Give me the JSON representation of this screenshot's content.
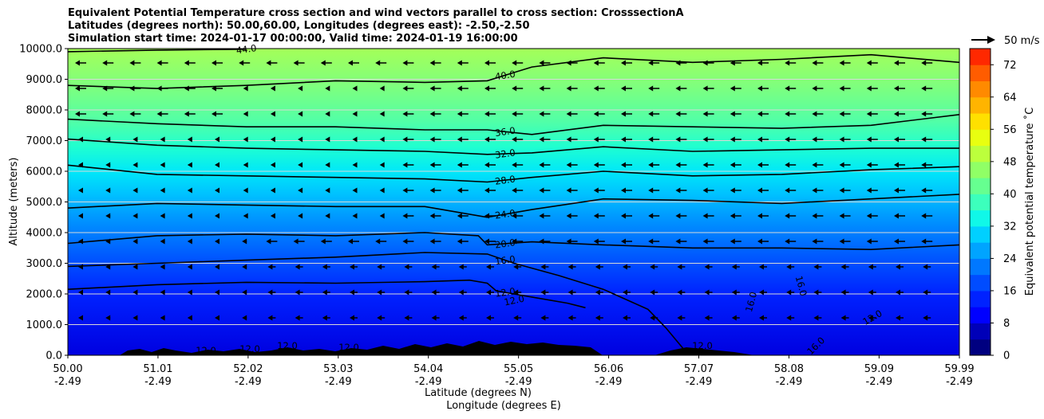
{
  "chart_data": {
    "type": "heatmap",
    "title_lines": [
      "Equivalent Potential Temperature cross section and wind vectors parallel to cross section: CrosssectionA",
      "Latitudes (degrees north): 50.00,60.00, Longitudes (degrees east): -2.50,-2.50",
      "Simulation start time: 2024-01-17 00:00:00, Valid time: 2024-01-19 16:00:00"
    ],
    "ylabel": "Altitude (meters)",
    "xlabel": "Latitude (degrees N)",
    "xlabel2": "Longitude (degrees E)",
    "ylim": [
      0,
      10000
    ],
    "xlim": [
      50.0,
      59.99
    ],
    "y_ticks": [
      {
        "value": 0,
        "label": "0.0"
      },
      {
        "value": 1000,
        "label": "1000.0"
      },
      {
        "value": 2000,
        "label": "2000.0"
      },
      {
        "value": 3000,
        "label": "3000.0"
      },
      {
        "value": 4000,
        "label": "4000.0"
      },
      {
        "value": 5000,
        "label": "5000.0"
      },
      {
        "value": 6000,
        "label": "6000.0"
      },
      {
        "value": 7000,
        "label": "7000.0"
      },
      {
        "value": 8000,
        "label": "8000.0"
      },
      {
        "value": 9000,
        "label": "9000.0"
      },
      {
        "value": 10000,
        "label": "10000.0"
      }
    ],
    "x_ticks": [
      {
        "lat": 50.0,
        "lat_label": "50.00",
        "lon_label": "-2.49"
      },
      {
        "lat": 51.01,
        "lat_label": "51.01",
        "lon_label": "-2.49"
      },
      {
        "lat": 52.02,
        "lat_label": "52.02",
        "lon_label": "-2.49"
      },
      {
        "lat": 53.03,
        "lat_label": "53.03",
        "lon_label": "-2.49"
      },
      {
        "lat": 54.04,
        "lat_label": "54.04",
        "lon_label": "-2.49"
      },
      {
        "lat": 55.05,
        "lat_label": "55.05",
        "lon_label": "-2.49"
      },
      {
        "lat": 56.06,
        "lat_label": "56.06",
        "lon_label": "-2.49"
      },
      {
        "lat": 57.07,
        "lat_label": "57.07",
        "lon_label": "-2.49"
      },
      {
        "lat": 58.08,
        "lat_label": "58.08",
        "lon_label": "-2.49"
      },
      {
        "lat": 59.09,
        "lat_label": "59.09",
        "lon_label": "-2.49"
      },
      {
        "lat": 59.99,
        "lat_label": "59.99",
        "lon_label": "-2.49"
      }
    ],
    "contours": [
      {
        "level": 12,
        "label": "12.0",
        "points": [
          [
            50.0,
            2150
          ],
          [
            51.0,
            2300
          ],
          [
            52.0,
            2380
          ],
          [
            53.0,
            2350
          ],
          [
            54.0,
            2400
          ],
          [
            54.5,
            2450
          ],
          [
            54.7,
            2350
          ],
          [
            54.8,
            2100
          ],
          [
            55.2,
            1900
          ],
          [
            55.6,
            1700
          ],
          [
            55.8,
            1550
          ]
        ]
      },
      {
        "level": 16,
        "label": "16.0",
        "points": [
          [
            50.0,
            2900
          ],
          [
            51.0,
            3000
          ],
          [
            52.0,
            3100
          ],
          [
            53.0,
            3200
          ],
          [
            54.0,
            3350
          ],
          [
            54.7,
            3300
          ],
          [
            55.0,
            3000
          ],
          [
            55.5,
            2600
          ],
          [
            56.0,
            2150
          ],
          [
            56.5,
            1500
          ],
          [
            56.7,
            900
          ],
          [
            56.9,
            200
          ]
        ]
      },
      {
        "level": 20,
        "label": "20.0",
        "points": [
          [
            50.0,
            3650
          ],
          [
            51.0,
            3900
          ],
          [
            52.0,
            3950
          ],
          [
            53.0,
            3900
          ],
          [
            54.0,
            4000
          ],
          [
            54.6,
            3900
          ],
          [
            54.7,
            3600
          ],
          [
            55.2,
            3700
          ],
          [
            56.0,
            3600
          ],
          [
            57.0,
            3500
          ],
          [
            58.0,
            3500
          ],
          [
            59.0,
            3450
          ],
          [
            59.99,
            3600
          ]
        ]
      },
      {
        "level": 24,
        "label": "24.0",
        "points": [
          [
            50.0,
            4800
          ],
          [
            51.0,
            4950
          ],
          [
            52.0,
            4900
          ],
          [
            53.0,
            4850
          ],
          [
            54.0,
            4850
          ],
          [
            54.7,
            4500
          ],
          [
            55.2,
            4750
          ],
          [
            56.0,
            5100
          ],
          [
            57.0,
            5050
          ],
          [
            58.0,
            4950
          ],
          [
            59.0,
            5100
          ],
          [
            59.99,
            5250
          ]
        ]
      },
      {
        "level": 28,
        "label": "28.0",
        "points": [
          [
            50.0,
            6200
          ],
          [
            51.0,
            5900
          ],
          [
            52.0,
            5850
          ],
          [
            53.0,
            5800
          ],
          [
            54.0,
            5750
          ],
          [
            54.7,
            5650
          ],
          [
            55.2,
            5800
          ],
          [
            56.0,
            6000
          ],
          [
            57.0,
            5850
          ],
          [
            58.0,
            5900
          ],
          [
            59.0,
            6050
          ],
          [
            59.99,
            6150
          ]
        ]
      },
      {
        "level": 32,
        "label": "32.0",
        "points": [
          [
            50.0,
            7050
          ],
          [
            51.0,
            6850
          ],
          [
            52.0,
            6750
          ],
          [
            53.0,
            6700
          ],
          [
            54.0,
            6650
          ],
          [
            54.7,
            6550
          ],
          [
            55.2,
            6600
          ],
          [
            56.0,
            6800
          ],
          [
            57.0,
            6650
          ],
          [
            58.0,
            6700
          ],
          [
            59.0,
            6750
          ],
          [
            59.99,
            6750
          ]
        ]
      },
      {
        "level": 36,
        "label": "36.0",
        "points": [
          [
            50.0,
            7700
          ],
          [
            51.0,
            7550
          ],
          [
            52.0,
            7450
          ],
          [
            53.0,
            7450
          ],
          [
            54.0,
            7350
          ],
          [
            54.7,
            7350
          ],
          [
            55.2,
            7200
          ],
          [
            56.0,
            7500
          ],
          [
            57.0,
            7450
          ],
          [
            58.0,
            7400
          ],
          [
            59.0,
            7500
          ],
          [
            59.99,
            7850
          ]
        ]
      },
      {
        "level": 40,
        "label": "40.0",
        "points": [
          [
            50.0,
            8800
          ],
          [
            51.0,
            8700
          ],
          [
            52.0,
            8800
          ],
          [
            53.0,
            8950
          ],
          [
            54.0,
            8900
          ],
          [
            54.7,
            8950
          ],
          [
            55.2,
            9400
          ],
          [
            56.0,
            9700
          ],
          [
            57.0,
            9550
          ],
          [
            58.0,
            9650
          ],
          [
            59.0,
            9800
          ],
          [
            59.99,
            9550
          ]
        ]
      },
      {
        "level": 44,
        "label": "44.0",
        "points": [
          [
            50.0,
            9900
          ],
          [
            51.0,
            9950
          ],
          [
            52.0,
            9980
          ]
        ]
      }
    ],
    "wind_reference": {
      "speed": 50,
      "label": "50 m/s"
    },
    "colorbar": {
      "label": "Equivalent potential temperature ˚C",
      "min": 0,
      "max": 76,
      "ticks": [
        {
          "value": 0,
          "label": "0"
        },
        {
          "value": 8,
          "label": "8"
        },
        {
          "value": 16,
          "label": "16"
        },
        {
          "value": 24,
          "label": "24"
        },
        {
          "value": 32,
          "label": "32"
        },
        {
          "value": 40,
          "label": "40"
        },
        {
          "value": 48,
          "label": "48"
        },
        {
          "value": 56,
          "label": "56"
        },
        {
          "value": 64,
          "label": "64"
        },
        {
          "value": 72,
          "label": "72"
        }
      ]
    },
    "contour_labels_extra": [
      "16.0",
      "16.0",
      "12.0",
      "16.0",
      "12.0",
      "12.0",
      "12.0",
      "12.0",
      "12.0",
      "12.0"
    ]
  }
}
